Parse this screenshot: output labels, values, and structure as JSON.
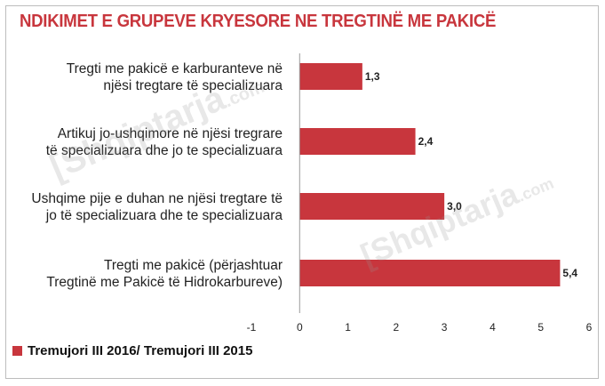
{
  "chart_data": {
    "type": "bar",
    "orientation": "horizontal",
    "title": "NDIKIMET E GRUPEVE KRYESORE NE TREGTINË ME PAKICË",
    "categories": [
      [
        "Tregti me pakicë e karburanteve në",
        "njësi tregtare të specializuara"
      ],
      [
        "Artikuj jo-ushqimore në njësi tregrare",
        "të specializuara dhe jo te specializuara"
      ],
      [
        "Ushqime pije e duhan ne njësi tregtare të",
        "jo të specializuara dhe te specializuara"
      ],
      [
        "Tregti me pakicë (përjashtuar",
        "Tregtinë me Pakicë të Hidrokarbureve)"
      ]
    ],
    "series": [
      {
        "name": "Tremujori III 2016/ Tremujori III 2015",
        "values": [
          1.3,
          2.4,
          3.0,
          5.4
        ],
        "labels": [
          "1,3",
          "2,4",
          "3,0",
          "5,4"
        ],
        "color": "#c8363d"
      }
    ],
    "xlim": [
      -1,
      6
    ],
    "xticks": [
      -1,
      0,
      1,
      2,
      3,
      4,
      5,
      6
    ],
    "legend": "bottom-left"
  },
  "watermark": {
    "text1": "[Shqiptarja",
    "text2": ".com"
  }
}
